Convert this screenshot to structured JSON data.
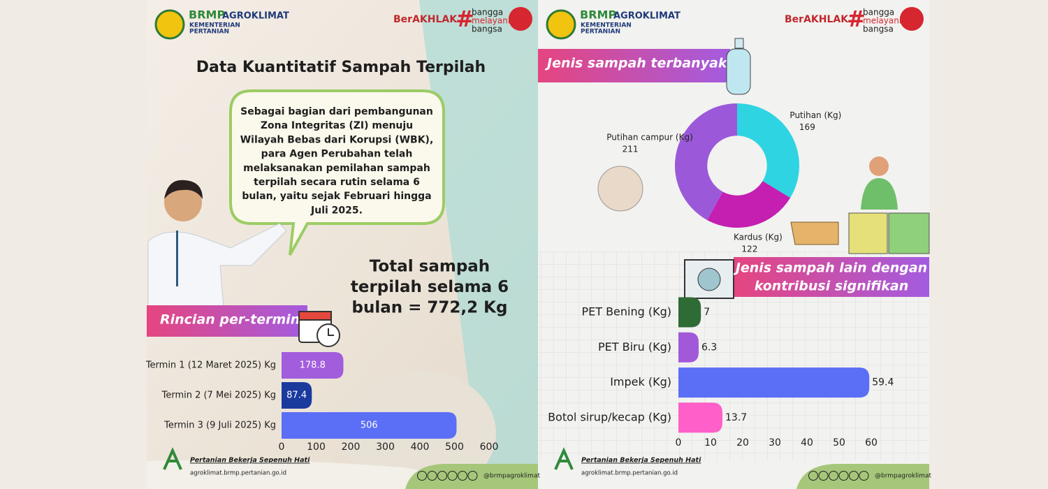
{
  "header": {
    "brand": "BRMP",
    "brand2": "AGROKLIMAT",
    "ministry": [
      "KEMENTERIAN",
      "PERTANIAN"
    ],
    "berakhlak": "BerAKHLAK",
    "hash": "#",
    "bangga": [
      "bangga",
      "melayani",
      "bangsa"
    ]
  },
  "footer": {
    "tagline": "Pertanian Bekerja Sepenuh Hati",
    "url": "agroklimat.brmp.pertanian.go.id",
    "handle": "@brmpagroklimat"
  },
  "left": {
    "title": "Data Kuantitatif  Sampah Terpilah",
    "bubble": [
      "Sebagai bagian dari pembangunan",
      "Zona Integritas (ZI) menuju",
      "Wilayah Bebas dari Korupsi (WBK),",
      "para Agen Perubahan telah",
      "melaksanakan pemilahan sampah",
      "terpilah secara rutin selama 6",
      "bulan, yaitu sejak Februari hingga",
      "Juli 2025."
    ],
    "total": [
      "Total sampah",
      "terpilah selama 6",
      "bulan = 772,2 Kg"
    ],
    "section": "Rincian per-termin"
  },
  "right": {
    "section1": "Jenis sampah terbanyak",
    "section2": [
      "Jenis sampah lain dengan",
      "kontribusi signifikan"
    ]
  },
  "chart_data": [
    {
      "type": "bar",
      "orientation": "horizontal",
      "categories": [
        "Termin 1 (12 Maret 2025) Kg",
        "Termin 2 (7 Mei 2025) Kg",
        "Termin 3 (9 Juli 2025) Kg"
      ],
      "values": [
        178.8,
        87.4,
        506
      ],
      "colors": [
        "#a25ddc",
        "#1b3a9e",
        "#5b6ef6"
      ],
      "xlim": [
        0,
        600
      ],
      "xticks": [
        0,
        100,
        200,
        300,
        400,
        500,
        600
      ]
    },
    {
      "type": "pie",
      "donut": true,
      "categories": [
        "Putihan (Kg)",
        "Kardus (Kg)",
        "Putihan campur (Kg)"
      ],
      "values": [
        169,
        122,
        211
      ],
      "colors": [
        "#2fd4e2",
        "#c41fb1",
        "#9b59d9"
      ]
    },
    {
      "type": "bar",
      "orientation": "horizontal",
      "categories": [
        "PET Bening (Kg)",
        "PET Biru (Kg)",
        "Impek (Kg)",
        "Botol sirup/kecap (Kg)"
      ],
      "values": [
        7,
        6.3,
        59.4,
        13.7
      ],
      "colors": [
        "#2e6b35",
        "#a259d9",
        "#5b6ef6",
        "#ff5fc8"
      ],
      "xlim": [
        0,
        60
      ],
      "xticks": [
        0,
        10,
        20,
        30,
        40,
        50,
        60
      ]
    }
  ]
}
